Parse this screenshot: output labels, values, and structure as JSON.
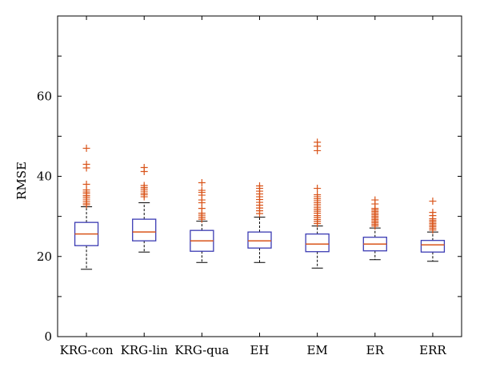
{
  "chart_data": {
    "type": "box",
    "ylabel": "RMSE",
    "ylim": [
      0,
      80
    ],
    "yticks": [
      0,
      20,
      40,
      60
    ],
    "ytick_labels": [
      "0",
      "20",
      "40",
      "60"
    ],
    "grid": false,
    "colors": {
      "box": "#3b3bb3",
      "median": "#d9541a",
      "outlier": "#d9541a",
      "whisker": "#000000",
      "axis": "#000000"
    },
    "categories": [
      "KRG-con",
      "KRG-lin",
      "KRG-qua",
      "EH",
      "EM",
      "ER",
      "ERR"
    ],
    "boxes": [
      {
        "name": "KRG-con",
        "whisker_low": 16.8,
        "q1": 22.7,
        "median": 25.6,
        "q3": 28.5,
        "whisker_high": 32.4,
        "outliers": [
          32.9,
          33.3,
          33.8,
          34.3,
          34.8,
          35.2,
          35.7,
          36.1,
          36.6,
          38.0,
          42.1,
          43.0,
          47.0
        ]
      },
      {
        "name": "KRG-lin",
        "whisker_low": 21.1,
        "q1": 23.9,
        "median": 26.1,
        "q3": 29.3,
        "whisker_high": 33.4,
        "outliers": [
          34.9,
          35.4,
          35.8,
          36.3,
          36.8,
          37.2,
          37.7,
          41.2,
          42.2
        ]
      },
      {
        "name": "KRG-qua",
        "whisker_low": 18.5,
        "q1": 21.3,
        "median": 23.9,
        "q3": 26.5,
        "whisker_high": 28.8,
        "outliers": [
          29.3,
          29.8,
          30.3,
          30.8,
          32.0,
          33.4,
          34.1,
          35.3,
          36.0,
          36.5,
          38.4
        ]
      },
      {
        "name": "EH",
        "whisker_low": 18.5,
        "q1": 22.1,
        "median": 23.9,
        "q3": 26.1,
        "whisker_high": 29.8,
        "outliers": [
          30.7,
          31.4,
          32.1,
          32.8,
          33.5,
          34.2,
          34.9,
          35.6,
          36.3,
          37.0,
          37.6
        ]
      },
      {
        "name": "EM",
        "whisker_low": 17.1,
        "q1": 21.2,
        "median": 23.1,
        "q3": 25.6,
        "whisker_high": 27.6,
        "outliers": [
          28.2,
          28.7,
          29.2,
          29.7,
          30.2,
          30.8,
          31.3,
          31.8,
          32.3,
          32.9,
          33.4,
          33.9,
          34.4,
          34.9,
          35.4,
          37.0,
          46.4,
          47.5,
          48.5
        ]
      },
      {
        "name": "ER",
        "whisker_low": 19.2,
        "q1": 21.4,
        "median": 23.1,
        "q3": 24.8,
        "whisker_high": 27.1,
        "outliers": [
          27.6,
          28.0,
          28.4,
          28.8,
          29.2,
          29.6,
          30.0,
          30.4,
          30.8,
          31.2,
          31.6,
          32.0,
          33.1,
          34.1
        ]
      },
      {
        "name": "ERR",
        "whisker_low": 18.8,
        "q1": 21.1,
        "median": 22.9,
        "q3": 24.0,
        "whisker_high": 26.1,
        "outliers": [
          26.6,
          27.0,
          27.4,
          27.8,
          28.2,
          28.6,
          29.0,
          29.4,
          30.2,
          31.0,
          33.8
        ]
      }
    ]
  }
}
